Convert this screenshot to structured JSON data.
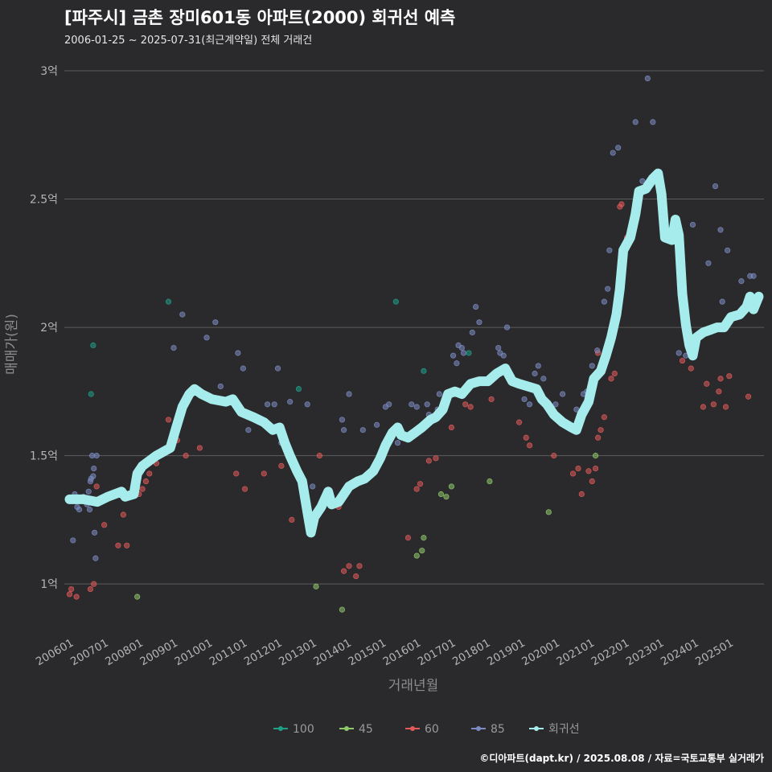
{
  "chart_data": {
    "type": "scatter",
    "title": "[파주시] 금촌 장미601동 아파트(2000) 회귀선 예측",
    "subtitle": "2006-01-25 ~ 2025-07-31(최근계약일) 전체 거래건",
    "xlabel": "거래년월",
    "ylabel": "매매가(원)",
    "ylim": [
      0.8,
      3.05
    ],
    "xlim": [
      2005.85,
      2026.0
    ],
    "y_ticks": [
      {
        "value": 1.0,
        "label": "1억"
      },
      {
        "value": 1.5,
        "label": "1.5억"
      },
      {
        "value": 2.0,
        "label": "2억"
      },
      {
        "value": 2.5,
        "label": "2.5억"
      },
      {
        "value": 3.0,
        "label": "3억"
      }
    ],
    "x_ticks": [
      {
        "value": 2006.0,
        "label": "200601"
      },
      {
        "value": 2007.0,
        "label": "200701"
      },
      {
        "value": 2008.0,
        "label": "200801"
      },
      {
        "value": 2009.0,
        "label": "200901"
      },
      {
        "value": 2010.0,
        "label": "201001"
      },
      {
        "value": 2011.0,
        "label": "201101"
      },
      {
        "value": 2012.0,
        "label": "201201"
      },
      {
        "value": 2013.0,
        "label": "201301"
      },
      {
        "value": 2014.0,
        "label": "201401"
      },
      {
        "value": 2015.0,
        "label": "201501"
      },
      {
        "value": 2016.0,
        "label": "201601"
      },
      {
        "value": 2017.0,
        "label": "201701"
      },
      {
        "value": 2018.0,
        "label": "201801"
      },
      {
        "value": 2019.0,
        "label": "201901"
      },
      {
        "value": 2020.0,
        "label": "202001"
      },
      {
        "value": 2021.0,
        "label": "202101"
      },
      {
        "value": 2022.0,
        "label": "202201"
      },
      {
        "value": 2023.0,
        "label": "202301"
      },
      {
        "value": 2024.0,
        "label": "202401"
      },
      {
        "value": 2025.0,
        "label": "202501"
      }
    ],
    "legend_position": "bottom",
    "legend": [
      {
        "name": "100",
        "color": "#1f9e89"
      },
      {
        "name": "45",
        "color": "#8ec96b"
      },
      {
        "name": "60",
        "color": "#e05a5a"
      },
      {
        "name": "85",
        "color": "#7b8cc2"
      },
      {
        "name": "회귀선",
        "color": "#a6ecec"
      }
    ],
    "series": [
      {
        "name": "100",
        "color": "#1f9e89",
        "points": [
          [
            2006.62,
            1.74
          ],
          [
            2006.68,
            1.93
          ],
          [
            2008.85,
            2.1
          ],
          [
            2012.6,
            1.76
          ],
          [
            2015.4,
            2.1
          ],
          [
            2016.2,
            1.83
          ],
          [
            2017.5,
            1.9
          ]
        ]
      },
      {
        "name": "45",
        "color": "#8ec96b",
        "points": [
          [
            2007.95,
            0.95
          ],
          [
            2013.1,
            0.99
          ],
          [
            2013.85,
            0.9
          ],
          [
            2016.0,
            1.11
          ],
          [
            2016.15,
            1.13
          ],
          [
            2016.2,
            1.18
          ],
          [
            2016.7,
            1.35
          ],
          [
            2016.85,
            1.34
          ],
          [
            2017.0,
            1.38
          ],
          [
            2018.1,
            1.4
          ],
          [
            2019.8,
            1.28
          ],
          [
            2021.15,
            1.5
          ],
          [
            2021.55,
            1.93
          ]
        ]
      },
      {
        "name": "60",
        "color": "#e05a5a",
        "points": [
          [
            2006.0,
            0.96
          ],
          [
            2006.05,
            0.98
          ],
          [
            2006.2,
            0.95
          ],
          [
            2006.6,
            0.98
          ],
          [
            2006.7,
            1.0
          ],
          [
            2006.78,
            1.38
          ],
          [
            2007.0,
            1.23
          ],
          [
            2007.4,
            1.15
          ],
          [
            2007.55,
            1.27
          ],
          [
            2007.65,
            1.15
          ],
          [
            2008.0,
            1.35
          ],
          [
            2008.1,
            1.37
          ],
          [
            2008.2,
            1.4
          ],
          [
            2008.3,
            1.43
          ],
          [
            2008.5,
            1.47
          ],
          [
            2008.85,
            1.64
          ],
          [
            2009.1,
            1.56
          ],
          [
            2009.35,
            1.5
          ],
          [
            2009.75,
            1.53
          ],
          [
            2010.8,
            1.43
          ],
          [
            2011.05,
            1.37
          ],
          [
            2011.6,
            1.43
          ],
          [
            2012.1,
            1.46
          ],
          [
            2012.4,
            1.25
          ],
          [
            2013.2,
            1.5
          ],
          [
            2013.75,
            1.3
          ],
          [
            2013.9,
            1.05
          ],
          [
            2014.05,
            1.07
          ],
          [
            2014.25,
            1.03
          ],
          [
            2014.35,
            1.07
          ],
          [
            2015.75,
            1.18
          ],
          [
            2016.0,
            1.37
          ],
          [
            2016.1,
            1.39
          ],
          [
            2016.35,
            1.48
          ],
          [
            2016.55,
            1.49
          ],
          [
            2017.0,
            1.61
          ],
          [
            2017.4,
            1.7
          ],
          [
            2017.55,
            1.69
          ],
          [
            2018.15,
            1.72
          ],
          [
            2018.95,
            1.63
          ],
          [
            2019.15,
            1.57
          ],
          [
            2019.25,
            1.54
          ],
          [
            2019.95,
            1.5
          ],
          [
            2020.5,
            1.43
          ],
          [
            2020.65,
            1.45
          ],
          [
            2020.75,
            1.35
          ],
          [
            2020.95,
            1.44
          ],
          [
            2021.05,
            1.4
          ],
          [
            2021.15,
            1.45
          ],
          [
            2021.22,
            1.57
          ],
          [
            2021.3,
            1.6
          ],
          [
            2021.4,
            1.65
          ],
          [
            2021.6,
            1.8
          ],
          [
            2021.7,
            1.82
          ],
          [
            2021.85,
            2.47
          ],
          [
            2021.9,
            2.48
          ],
          [
            2022.05,
            2.35
          ],
          [
            2023.65,
            1.87
          ],
          [
            2023.9,
            1.84
          ],
          [
            2024.25,
            1.69
          ],
          [
            2024.35,
            1.78
          ],
          [
            2024.55,
            1.7
          ],
          [
            2024.7,
            1.75
          ],
          [
            2024.75,
            1.8
          ],
          [
            2024.9,
            1.69
          ],
          [
            2025.0,
            1.81
          ],
          [
            2025.55,
            1.73
          ],
          [
            2021.22,
            1.9
          ]
        ]
      },
      {
        "name": "85",
        "color": "#7b8cc2",
        "points": [
          [
            2006.1,
            1.17
          ],
          [
            2006.15,
            1.35
          ],
          [
            2006.22,
            1.3
          ],
          [
            2006.28,
            1.29
          ],
          [
            2006.4,
            1.34
          ],
          [
            2006.5,
            1.31
          ],
          [
            2006.55,
            1.36
          ],
          [
            2006.58,
            1.29
          ],
          [
            2006.6,
            1.4
          ],
          [
            2006.62,
            1.41
          ],
          [
            2006.65,
            1.5
          ],
          [
            2006.68,
            1.42
          ],
          [
            2006.7,
            1.45
          ],
          [
            2006.72,
            1.2
          ],
          [
            2006.75,
            1.1
          ],
          [
            2006.78,
            1.5
          ],
          [
            2009.0,
            1.92
          ],
          [
            2009.25,
            2.05
          ],
          [
            2009.95,
            1.96
          ],
          [
            2010.2,
            2.02
          ],
          [
            2010.35,
            1.77
          ],
          [
            2010.85,
            1.9
          ],
          [
            2011.0,
            1.84
          ],
          [
            2011.15,
            1.6
          ],
          [
            2011.7,
            1.7
          ],
          [
            2011.9,
            1.7
          ],
          [
            2012.0,
            1.84
          ],
          [
            2012.1,
            1.55
          ],
          [
            2012.35,
            1.71
          ],
          [
            2012.85,
            1.7
          ],
          [
            2013.0,
            1.38
          ],
          [
            2013.85,
            1.64
          ],
          [
            2013.9,
            1.6
          ],
          [
            2014.05,
            1.74
          ],
          [
            2014.45,
            1.6
          ],
          [
            2014.85,
            1.62
          ],
          [
            2015.1,
            1.69
          ],
          [
            2015.2,
            1.7
          ],
          [
            2015.45,
            1.55
          ],
          [
            2015.85,
            1.7
          ],
          [
            2016.0,
            1.69
          ],
          [
            2016.3,
            1.7
          ],
          [
            2016.35,
            1.66
          ],
          [
            2016.4,
            1.63
          ],
          [
            2016.5,
            1.65
          ],
          [
            2016.6,
            1.68
          ],
          [
            2016.65,
            1.74
          ],
          [
            2016.85,
            1.74
          ],
          [
            2017.05,
            1.89
          ],
          [
            2017.15,
            1.86
          ],
          [
            2017.2,
            1.93
          ],
          [
            2017.3,
            1.92
          ],
          [
            2017.35,
            1.9
          ],
          [
            2017.6,
            1.98
          ],
          [
            2017.7,
            2.08
          ],
          [
            2017.8,
            2.02
          ],
          [
            2018.35,
            1.92
          ],
          [
            2018.4,
            1.9
          ],
          [
            2018.5,
            1.89
          ],
          [
            2018.6,
            2.0
          ],
          [
            2019.0,
            1.78
          ],
          [
            2019.1,
            1.72
          ],
          [
            2019.25,
            1.7
          ],
          [
            2019.4,
            1.82
          ],
          [
            2019.5,
            1.85
          ],
          [
            2019.65,
            1.8
          ],
          [
            2020.0,
            1.7
          ],
          [
            2020.2,
            1.74
          ],
          [
            2020.6,
            1.68
          ],
          [
            2020.8,
            1.74
          ],
          [
            2020.9,
            1.75
          ],
          [
            2021.05,
            1.85
          ],
          [
            2021.2,
            1.91
          ],
          [
            2021.4,
            2.1
          ],
          [
            2021.5,
            2.15
          ],
          [
            2021.55,
            2.3
          ],
          [
            2021.65,
            2.68
          ],
          [
            2021.8,
            2.7
          ],
          [
            2022.3,
            2.8
          ],
          [
            2022.5,
            2.57
          ],
          [
            2022.65,
            2.97
          ],
          [
            2022.8,
            2.8
          ],
          [
            2023.95,
            2.4
          ],
          [
            2024.4,
            2.25
          ],
          [
            2024.6,
            2.55
          ],
          [
            2024.75,
            2.38
          ],
          [
            2024.8,
            2.1
          ],
          [
            2024.95,
            2.3
          ],
          [
            2025.35,
            2.18
          ],
          [
            2025.6,
            2.2
          ],
          [
            2025.7,
            2.2
          ],
          [
            2023.55,
            1.9
          ],
          [
            2023.75,
            1.89
          ],
          [
            2024.05,
            1.96
          ]
        ]
      }
    ],
    "regression": [
      [
        2006.0,
        1.33
      ],
      [
        2006.4,
        1.33
      ],
      [
        2006.8,
        1.32
      ],
      [
        2007.1,
        1.34
      ],
      [
        2007.3,
        1.35
      ],
      [
        2007.5,
        1.36
      ],
      [
        2007.6,
        1.34
      ],
      [
        2007.85,
        1.35
      ],
      [
        2007.95,
        1.43
      ],
      [
        2008.1,
        1.46
      ],
      [
        2008.5,
        1.5
      ],
      [
        2008.9,
        1.53
      ],
      [
        2009.05,
        1.6
      ],
      [
        2009.25,
        1.69
      ],
      [
        2009.45,
        1.74
      ],
      [
        2009.6,
        1.76
      ],
      [
        2009.8,
        1.74
      ],
      [
        2010.1,
        1.72
      ],
      [
        2010.5,
        1.71
      ],
      [
        2010.7,
        1.72
      ],
      [
        2010.95,
        1.67
      ],
      [
        2011.3,
        1.65
      ],
      [
        2011.6,
        1.63
      ],
      [
        2011.85,
        1.6
      ],
      [
        2012.05,
        1.61
      ],
      [
        2012.2,
        1.55
      ],
      [
        2012.35,
        1.5
      ],
      [
        2012.55,
        1.44
      ],
      [
        2012.7,
        1.4
      ],
      [
        2012.85,
        1.28
      ],
      [
        2012.95,
        1.2
      ],
      [
        2013.05,
        1.26
      ],
      [
        2013.25,
        1.3
      ],
      [
        2013.45,
        1.36
      ],
      [
        2013.55,
        1.31
      ],
      [
        2013.75,
        1.32
      ],
      [
        2013.9,
        1.35
      ],
      [
        2014.05,
        1.38
      ],
      [
        2014.3,
        1.4
      ],
      [
        2014.5,
        1.41
      ],
      [
        2014.75,
        1.44
      ],
      [
        2014.95,
        1.49
      ],
      [
        2015.1,
        1.54
      ],
      [
        2015.3,
        1.59
      ],
      [
        2015.45,
        1.61
      ],
      [
        2015.55,
        1.58
      ],
      [
        2015.75,
        1.57
      ],
      [
        2015.95,
        1.59
      ],
      [
        2016.15,
        1.61
      ],
      [
        2016.4,
        1.64
      ],
      [
        2016.55,
        1.65
      ],
      [
        2016.75,
        1.68
      ],
      [
        2016.9,
        1.74
      ],
      [
        2017.1,
        1.75
      ],
      [
        2017.3,
        1.74
      ],
      [
        2017.55,
        1.78
      ],
      [
        2017.8,
        1.79
      ],
      [
        2018.05,
        1.79
      ],
      [
        2018.3,
        1.82
      ],
      [
        2018.55,
        1.84
      ],
      [
        2018.75,
        1.79
      ],
      [
        2018.95,
        1.78
      ],
      [
        2019.2,
        1.77
      ],
      [
        2019.45,
        1.76
      ],
      [
        2019.6,
        1.72
      ],
      [
        2019.75,
        1.7
      ],
      [
        2019.95,
        1.66
      ],
      [
        2020.2,
        1.63
      ],
      [
        2020.45,
        1.61
      ],
      [
        2020.6,
        1.6
      ],
      [
        2020.75,
        1.66
      ],
      [
        2020.95,
        1.71
      ],
      [
        2021.1,
        1.8
      ],
      [
        2021.3,
        1.83
      ],
      [
        2021.45,
        1.89
      ],
      [
        2021.6,
        1.96
      ],
      [
        2021.75,
        2.05
      ],
      [
        2021.85,
        2.15
      ],
      [
        2021.95,
        2.3
      ],
      [
        2022.15,
        2.35
      ],
      [
        2022.3,
        2.44
      ],
      [
        2022.4,
        2.53
      ],
      [
        2022.6,
        2.54
      ],
      [
        2022.8,
        2.58
      ],
      [
        2022.95,
        2.6
      ],
      [
        2023.05,
        2.52
      ],
      [
        2023.15,
        2.35
      ],
      [
        2023.35,
        2.34
      ],
      [
        2023.45,
        2.42
      ],
      [
        2023.55,
        2.36
      ],
      [
        2023.65,
        2.13
      ],
      [
        2023.75,
        2.01
      ],
      [
        2023.85,
        1.93
      ],
      [
        2023.95,
        1.89
      ],
      [
        2024.05,
        1.96
      ],
      [
        2024.25,
        1.98
      ],
      [
        2024.45,
        1.99
      ],
      [
        2024.65,
        2.0
      ],
      [
        2024.85,
        2.0
      ],
      [
        2025.05,
        2.04
      ],
      [
        2025.3,
        2.05
      ],
      [
        2025.5,
        2.08
      ],
      [
        2025.6,
        2.12
      ],
      [
        2025.7,
        2.07
      ],
      [
        2025.85,
        2.12
      ]
    ]
  },
  "credit": "©디아파트(dapt.kr) / 2025.08.08 / 자료=국토교통부 실거래가"
}
